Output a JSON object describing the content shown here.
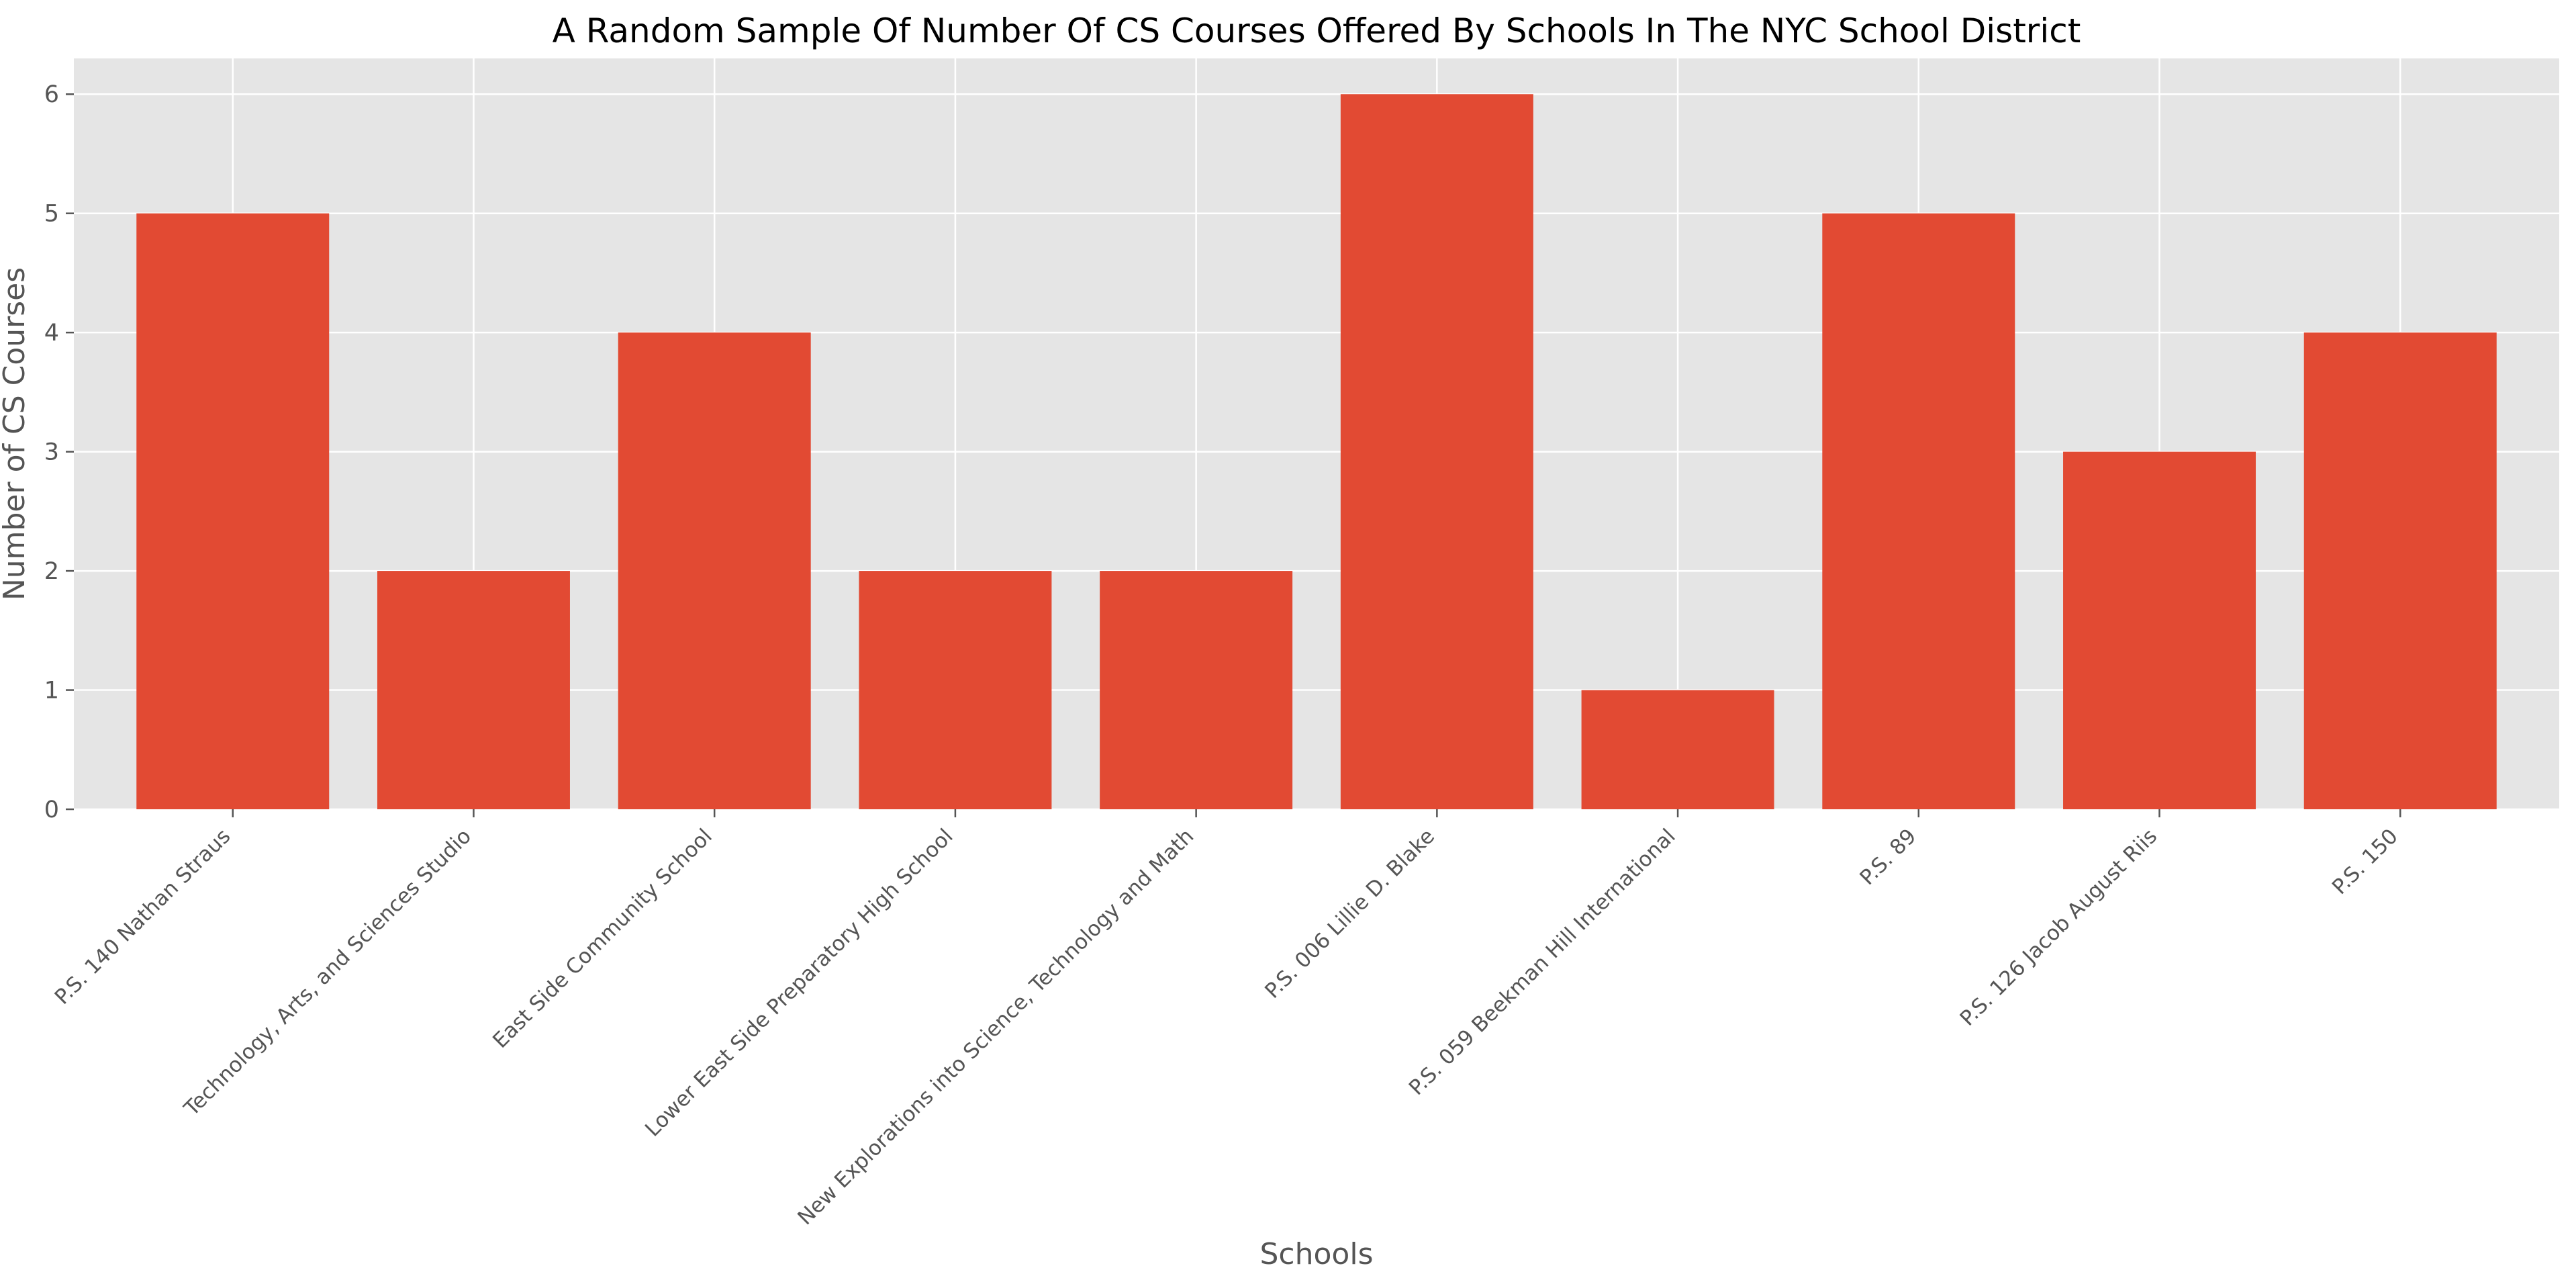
{
  "chart_data": {
    "type": "bar",
    "title": "A Random Sample Of Number Of CS Courses Offered By Schools In The NYC School District",
    "xlabel": "Schools",
    "ylabel": "Number of CS Courses",
    "categories": [
      "P.S. 140 Nathan Straus",
      "Technology, Arts, and Sciences Studio",
      "East Side Community School",
      "Lower East Side Preparatory High School",
      "New Explorations into Science, Technology and Math",
      "P.S. 006 Lillie D. Blake",
      "P.S. 059 Beekman Hill International",
      "P.S. 89",
      "P.S. 126 Jacob August Riis",
      "P.S. 150"
    ],
    "values": [
      5,
      2,
      4,
      2,
      2,
      6,
      1,
      5,
      3,
      4
    ],
    "yticks": [
      "0",
      "1",
      "2",
      "3",
      "4",
      "5",
      "6"
    ],
    "ylim": [
      0,
      6.3
    ],
    "grid": true,
    "colors": {
      "bar": "#E24A33",
      "plot_background": "#E5E5E5",
      "grid": "#FFFFFF",
      "tick": "#555555"
    }
  }
}
